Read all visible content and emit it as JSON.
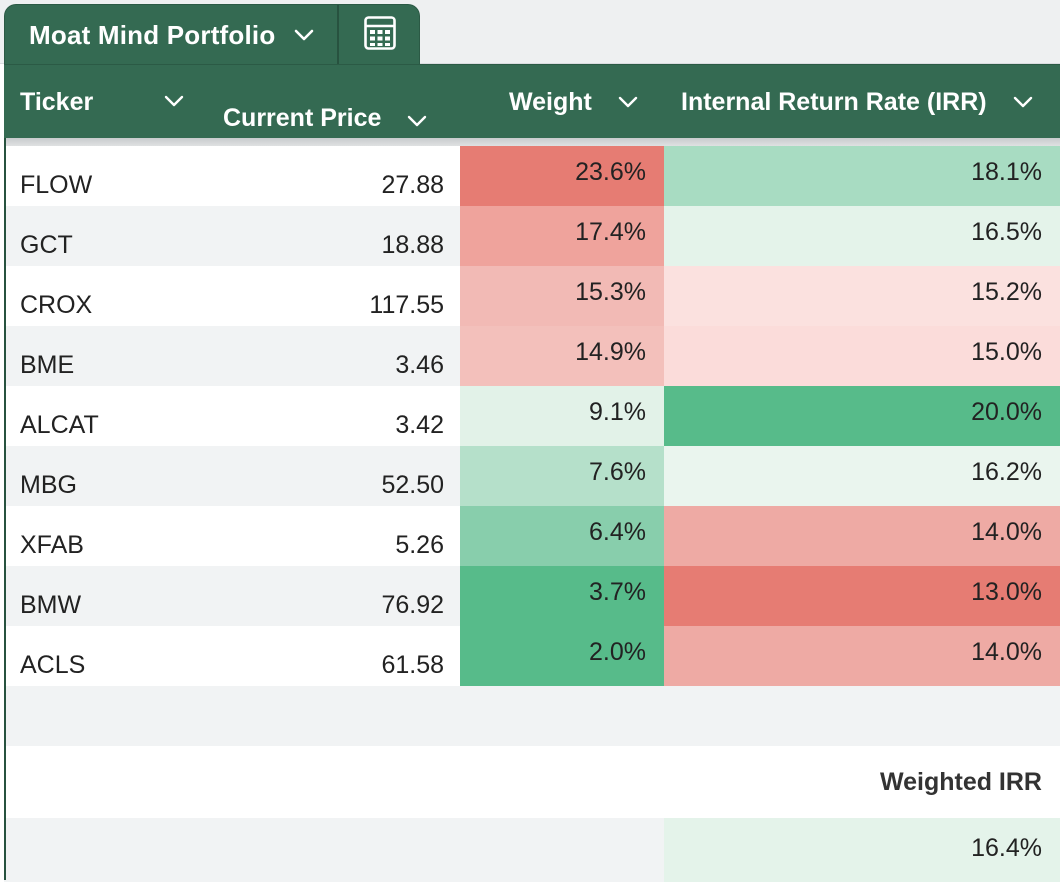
{
  "tab": {
    "name": "Moat Mind Portfolio",
    "calculator_icon": "calculator-icon",
    "chevron_icon": "chevron-down-icon"
  },
  "columns": [
    {
      "key": "ticker",
      "label": "Ticker"
    },
    {
      "key": "price",
      "label": "Current Price"
    },
    {
      "key": "weight",
      "label": "Weight"
    },
    {
      "key": "irr",
      "label": "Internal Return Rate (IRR)"
    }
  ],
  "rows": [
    {
      "ticker": "FLOW",
      "price": "27.88",
      "weight": "23.6%",
      "irr": "18.1%",
      "weight_color": "#e67c73",
      "irr_color": "#a8dcc2"
    },
    {
      "ticker": "GCT",
      "price": "18.88",
      "weight": "17.4%",
      "irr": "16.5%",
      "weight_color": "#efa39c",
      "irr_color": "#e4f3ea"
    },
    {
      "ticker": "CROX",
      "price": "117.55",
      "weight": "15.3%",
      "irr": "15.2%",
      "weight_color": "#f2bab5",
      "irr_color": "#fbe1df"
    },
    {
      "ticker": "BME",
      "price": "3.46",
      "weight": "14.9%",
      "irr": "15.0%",
      "weight_color": "#f3c0bb",
      "irr_color": "#fbdcda"
    },
    {
      "ticker": "ALCAT",
      "price": "3.42",
      "weight": "9.1%",
      "irr": "20.0%",
      "weight_color": "#e2f2e8",
      "irr_color": "#57bb8a"
    },
    {
      "ticker": "MBG",
      "price": "52.50",
      "weight": "7.6%",
      "irr": "16.2%",
      "weight_color": "#b5e0ca",
      "irr_color": "#eaf5ee"
    },
    {
      "ticker": "XFAB",
      "price": "5.26",
      "weight": "6.4%",
      "irr": "14.0%",
      "weight_color": "#88ceac",
      "irr_color": "#eeaaa4"
    },
    {
      "ticker": "BMW",
      "price": "76.92",
      "weight": "3.7%",
      "irr": "13.0%",
      "weight_color": "#57bb8a",
      "irr_color": "#e67c73"
    },
    {
      "ticker": "ACLS",
      "price": "61.58",
      "weight": "2.0%",
      "irr": "14.0%",
      "weight_color": "#57bb8a",
      "irr_color": "#eeaaa4"
    }
  ],
  "footer": {
    "label": "Weighted IRR",
    "value": "16.4%",
    "value_color": "#e4f3ea"
  },
  "colors": {
    "header_bg": "#346a52",
    "header_text": "#ffffff",
    "alt_row": "#f1f3f4"
  }
}
